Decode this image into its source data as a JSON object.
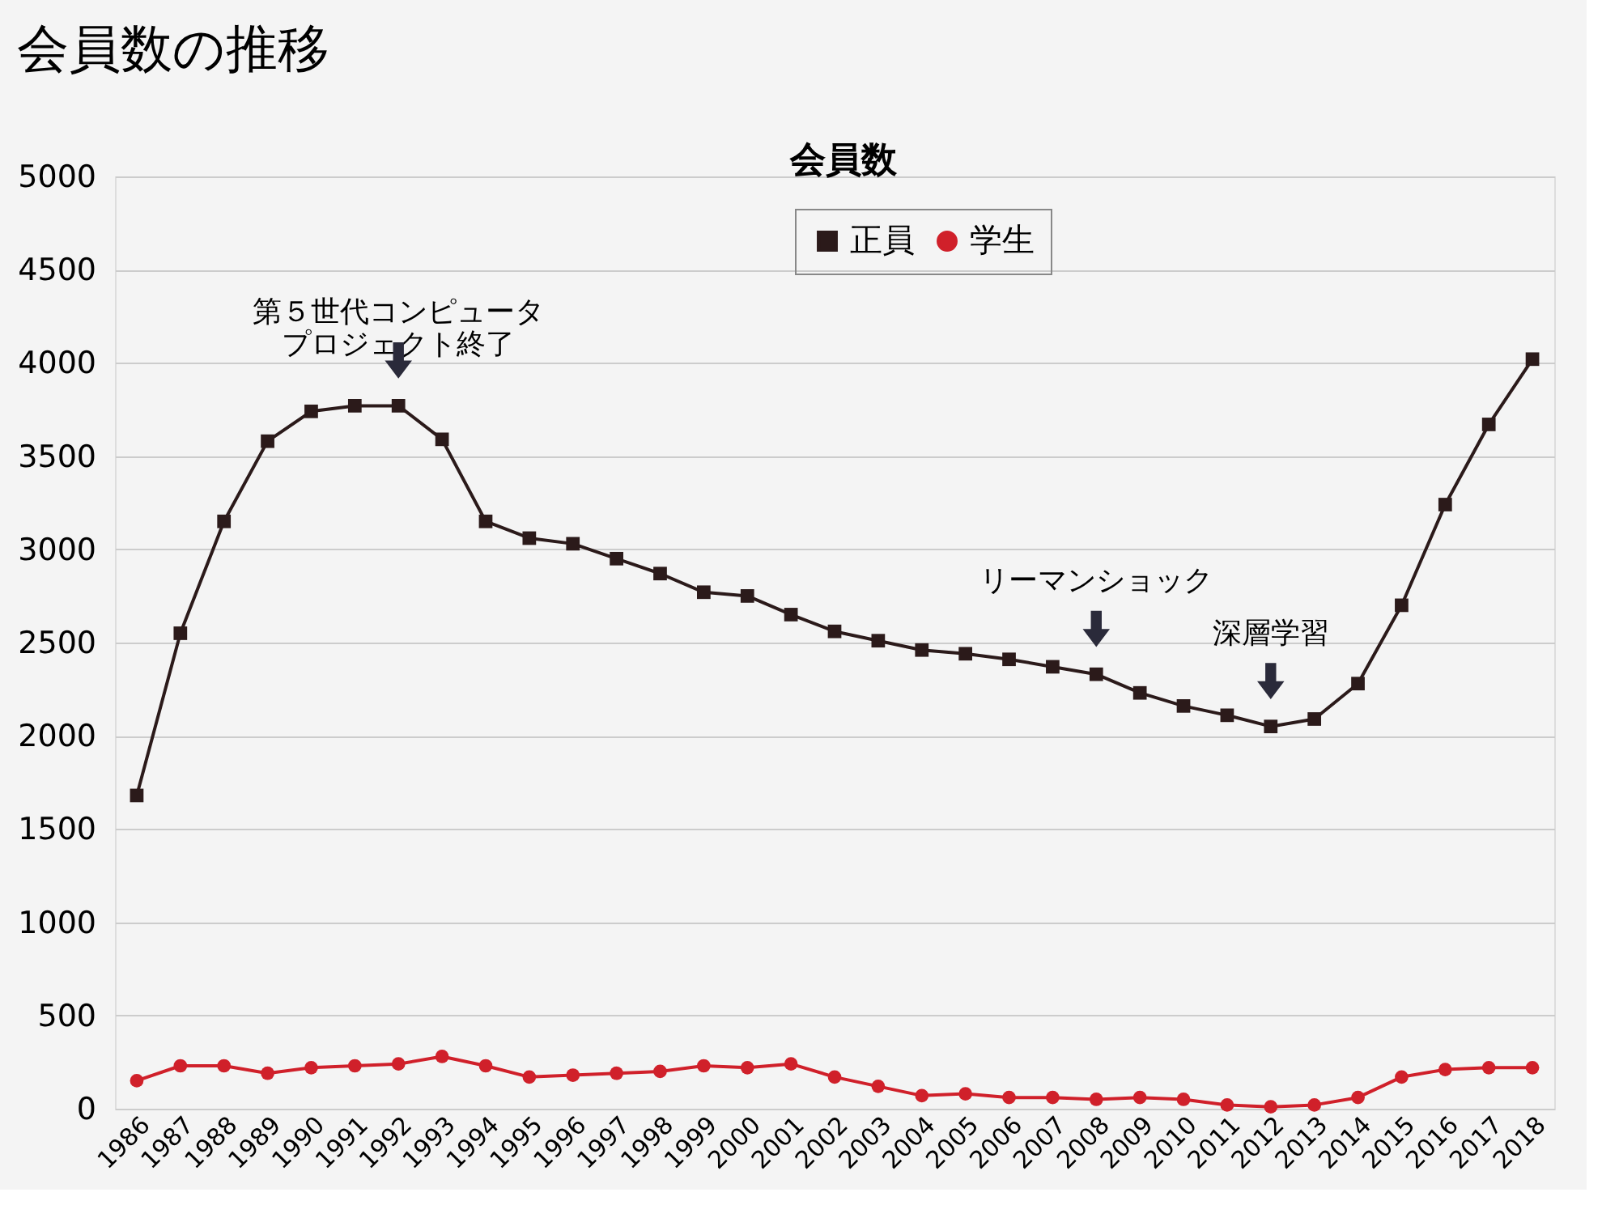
{
  "chart_data": {
    "type": "line",
    "title": "会員数の推移",
    "subtitle": "会員数",
    "categories": [
      "1986",
      "1987",
      "1988",
      "1989",
      "1990",
      "1991",
      "1992",
      "1993",
      "1994",
      "1995",
      "1996",
      "1997",
      "1998",
      "1999",
      "2000",
      "2001",
      "2002",
      "2003",
      "2004",
      "2005",
      "2006",
      "2007",
      "2008",
      "2009",
      "2010",
      "2011",
      "2012",
      "2013",
      "2014",
      "2015",
      "2016",
      "2017",
      "2018"
    ],
    "series": [
      {
        "name": "正員",
        "color": "#2b1a1a",
        "marker": "square",
        "values": [
          1680,
          2550,
          3150,
          3580,
          3740,
          3770,
          3770,
          3590,
          3150,
          3060,
          3030,
          2950,
          2870,
          2770,
          2750,
          2650,
          2560,
          2510,
          2460,
          2440,
          2410,
          2370,
          2330,
          2230,
          2160,
          2110,
          2050,
          2090,
          2280,
          2700,
          3240,
          3670,
          4020
        ]
      },
      {
        "name": "学生",
        "color": "#d0202a",
        "marker": "circle",
        "values": [
          150,
          230,
          230,
          190,
          220,
          230,
          240,
          280,
          230,
          170,
          180,
          190,
          200,
          230,
          220,
          240,
          170,
          120,
          70,
          80,
          60,
          60,
          50,
          60,
          50,
          20,
          10,
          20,
          60,
          170,
          210,
          220,
          220
        ]
      }
    ],
    "ylim": [
      0,
      5000
    ],
    "yticks": [
      0,
      500,
      1000,
      1500,
      2000,
      2500,
      3000,
      3500,
      4000,
      4500,
      5000
    ],
    "grid": "y",
    "legend": "top",
    "line_style": "solid",
    "annotations": [
      {
        "text": "第５世代コンピュータプロジェクト終了",
        "x": "1992",
        "y": 3770
      },
      {
        "text": "リーマンショック",
        "x": "2008",
        "y": 2330
      },
      {
        "text": "深層学習",
        "x": "2012",
        "y": 2050
      }
    ]
  }
}
